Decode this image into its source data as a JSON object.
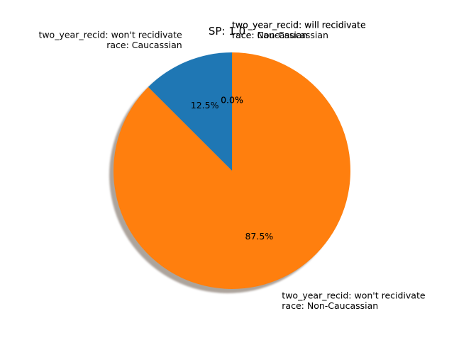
{
  "chart_data": {
    "type": "pie",
    "title": "SP: 1.0",
    "startangle_deg": 90,
    "counterclock": true,
    "shadow": true,
    "slices": [
      {
        "label_line1": "two_year_recid: won't recidivate",
        "label_line2": "race: Caucassian",
        "value": 12.5,
        "pct_label": "12.5%",
        "color": "#1f77b4"
      },
      {
        "label_line1": "two_year_recid: won't recidivate",
        "label_line2": "race: Non-Caucassian",
        "value": 87.5,
        "pct_label": "87.5%",
        "color": "#ff7f0e"
      },
      {
        "label_line1": "two_year_recid: will recidivate",
        "label_line2": "race: Caucassian",
        "value": 0.0,
        "pct_label": "0.0%",
        "color": "#2ca02c"
      },
      {
        "label_line1": "two_year_recid: will recidivate",
        "label_line2": "race: Non-Caucassian",
        "value": 0.0,
        "pct_label": "0.0%",
        "color": "#d62728"
      }
    ]
  }
}
